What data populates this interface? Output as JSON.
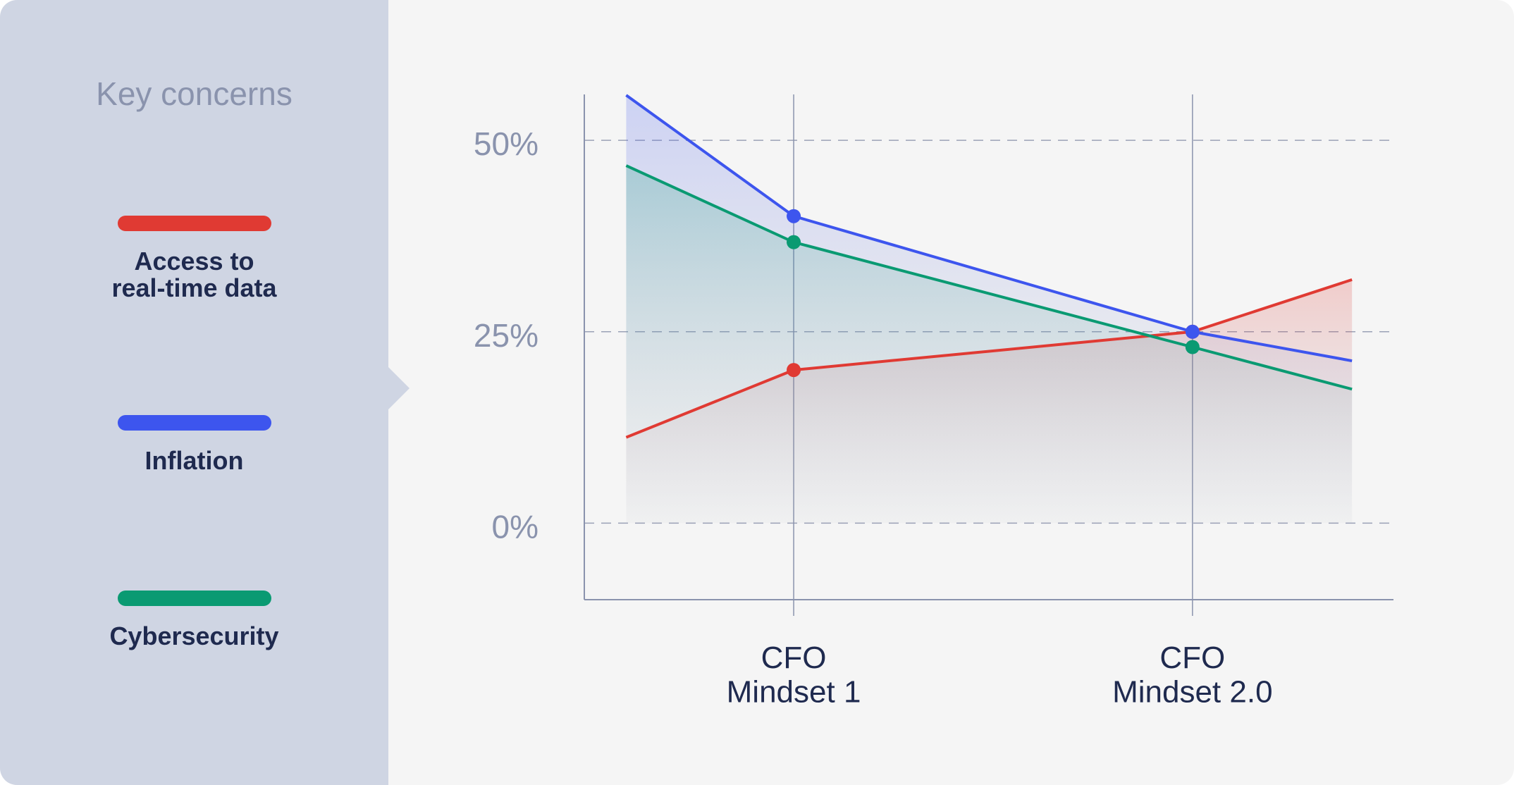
{
  "chart_data": {
    "type": "line",
    "legend_title": "Key concerns",
    "x": [
      -0.42,
      0,
      1,
      1.4
    ],
    "xlim": [
      -0.525,
      1.504
    ],
    "xticks": [
      {
        "value": 0,
        "label": "CFO\nMindset 1"
      },
      {
        "value": 1,
        "label": "CFO\nMindset 2.0"
      }
    ],
    "ylim": [
      -10,
      56
    ],
    "yticks": [
      {
        "value": 0,
        "label": "0%"
      },
      {
        "value": 25,
        "label": "25%"
      },
      {
        "value": 50,
        "label": "50%"
      }
    ],
    "grid": true,
    "series": [
      {
        "name": "Access to\nreal-time data",
        "color": "#e03a33",
        "values": [
          11.2,
          20,
          25,
          31.8
        ]
      },
      {
        "name": "Inflation",
        "color": "#3d55ee",
        "values": [
          55.9,
          40.1,
          25,
          21.2
        ]
      },
      {
        "name": "Cybersecurity",
        "color": "#0a9a72",
        "values": [
          46.7,
          36.7,
          23,
          17.5
        ]
      }
    ]
  }
}
